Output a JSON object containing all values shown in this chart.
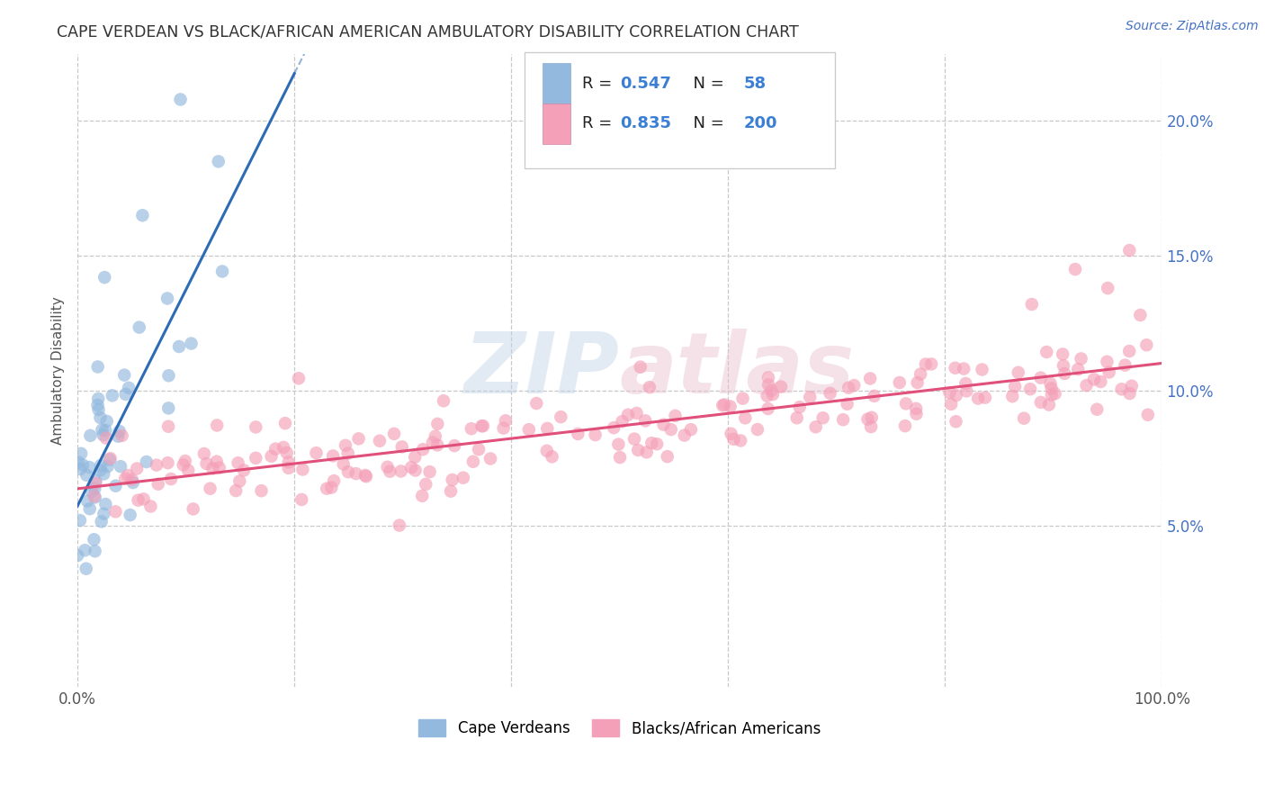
{
  "title": "CAPE VERDEAN VS BLACK/AFRICAN AMERICAN AMBULATORY DISABILITY CORRELATION CHART",
  "source": "Source: ZipAtlas.com",
  "ylabel": "Ambulatory Disability",
  "watermark": "ZIPAtlas",
  "xlim": [
    0,
    100
  ],
  "ylim": [
    -1.0,
    22.5
  ],
  "blue_R": 0.547,
  "blue_N": 58,
  "pink_R": 0.835,
  "pink_N": 200,
  "blue_color": "#93b9de",
  "pink_color": "#f4a0b8",
  "blue_line_color": "#2d6bb5",
  "pink_line_color": "#e0507a",
  "legend_color": "#3a7fd4",
  "title_color": "#333333",
  "source_color": "#4472c4",
  "background_color": "#ffffff",
  "grid_color": "#c8c8c8",
  "ytick_values": [
    5.0,
    10.0,
    15.0,
    20.0
  ],
  "blue_seed": 7,
  "pink_seed": 42
}
